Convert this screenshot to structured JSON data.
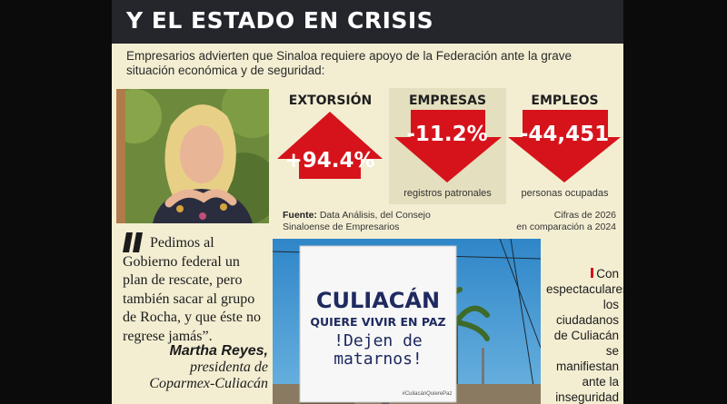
{
  "header": {
    "title": "Y EL ESTADO EN CRISIS"
  },
  "intro": {
    "text": "Empresarios advierten que Sinaloa requiere apoyo de la Federación ante la grave situación económica y de seguridad:"
  },
  "stats": [
    {
      "label": "EXTORSIÓN",
      "value": "+94.4%",
      "sub": "",
      "direction": "up"
    },
    {
      "label": "EMPRESAS",
      "value": "-11.2%",
      "sub": "registros patronales",
      "direction": "down"
    },
    {
      "label": "EMPLEOS",
      "value": "-44,451",
      "sub": "personas ocupadas",
      "direction": "down"
    }
  ],
  "source": {
    "label": "Fuente:",
    "text1": "Data Análisis, del Consejo",
    "text2": "Sinaloense de Empresarios"
  },
  "cifras": {
    "line1": "Cifras de 2026",
    "line2": "en comparación a 2024"
  },
  "quote": {
    "text": "Pedimos al Gobierno federal un plan de rescate, pero también sacar al grupo de Rocha, y que éste no regrese jamás”."
  },
  "author": {
    "name": "Martha Reyes,",
    "role1": "presidenta de",
    "role2": "Coparmex-Culiacán"
  },
  "billboard": {
    "line1": "CULIACÁN",
    "line2": "QUIERE VIVIR EN PAZ",
    "line3": "!Dejen de",
    "line4": "matarnos!",
    "hashtag": "#CuliacánQuierePaz"
  },
  "caption": {
    "text": "Con espectaculares, los ciudadanos de Culiacán se manifiestan ante la inseguridad que viven."
  },
  "colors": {
    "red": "#d6131b",
    "header": "#24262c",
    "panel": "#f3eed2",
    "panel_alt": "#e4dfbe"
  }
}
